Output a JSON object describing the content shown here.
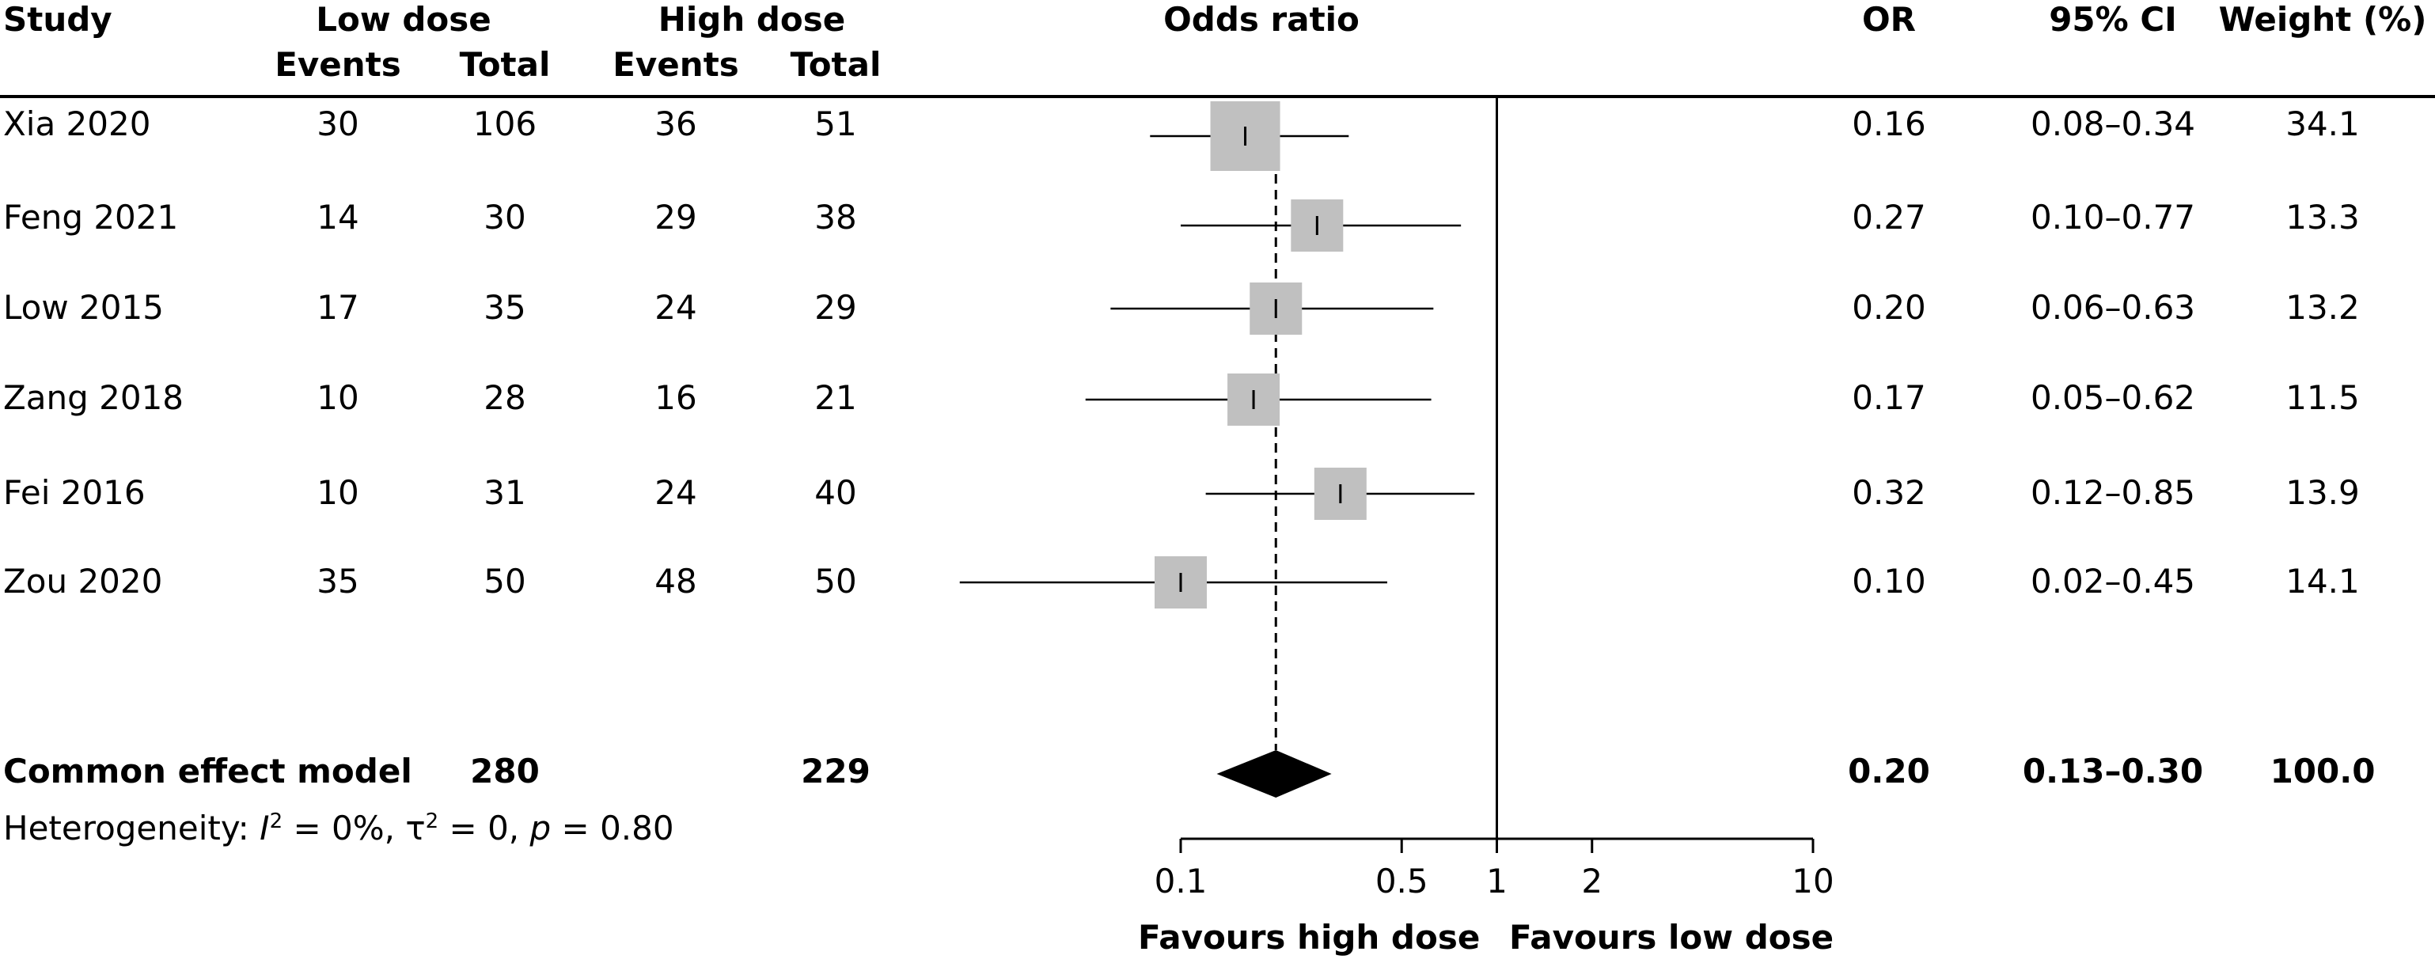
{
  "headers": {
    "study": "Study",
    "low_dose": "Low dose",
    "high_dose": "High dose",
    "events": "Events",
    "total": "Total",
    "odds_ratio": "Odds ratio",
    "or": "OR",
    "ci": "95% CI",
    "weight": "Weight (%)"
  },
  "rows": [
    {
      "study": "Xia 2020",
      "low_events": "30",
      "low_total": "106",
      "high_events": "36",
      "high_total": "51",
      "or": "0.16",
      "ci": "0.08–0.34",
      "weight": "34.1"
    },
    {
      "study": "Feng 2021",
      "low_events": "14",
      "low_total": "30",
      "high_events": "29",
      "high_total": "38",
      "or": "0.27",
      "ci": "0.10–0.77",
      "weight": "13.3"
    },
    {
      "study": "Low 2015",
      "low_events": "17",
      "low_total": "35",
      "high_events": "24",
      "high_total": "29",
      "or": "0.20",
      "ci": "0.06–0.63",
      "weight": "13.2"
    },
    {
      "study": "Zang 2018",
      "low_events": "10",
      "low_total": "28",
      "high_events": "16",
      "high_total": "21",
      "or": "0.17",
      "ci": "0.05–0.62",
      "weight": "11.5"
    },
    {
      "study": "Fei 2016",
      "low_events": "10",
      "low_total": "31",
      "high_events": "24",
      "high_total": "40",
      "or": "0.32",
      "ci": "0.12–0.85",
      "weight": "13.9"
    },
    {
      "study": "Zou 2020",
      "low_events": "35",
      "low_total": "50",
      "high_events": "48",
      "high_total": "50",
      "or": "0.10",
      "ci": "0.02–0.45",
      "weight": "14.1"
    }
  ],
  "summary": {
    "label": "Common effect model",
    "low_total": "280",
    "high_total": "229",
    "or": "0.20",
    "ci": "0.13–0.30",
    "weight": "100.0"
  },
  "heterogeneity": {
    "prefix": "Heterogeneity: ",
    "i_symbol": "I",
    "i_sup": "2",
    "i_value": " = 0%, τ",
    "tau_sup": "2",
    "tau_value": " = 0, ",
    "p_symbol": "p",
    "p_value": " = 0.80"
  },
  "axis": {
    "favours_left": "Favours high dose",
    "favours_right": "Favours low dose"
  },
  "chart_data": {
    "type": "forest",
    "scale": "log",
    "xlim": [
      0.1,
      10
    ],
    "ticks": [
      {
        "value": 0.1,
        "label": "0.1"
      },
      {
        "value": 0.5,
        "label": "0.5"
      },
      {
        "value": 1,
        "label": "1"
      },
      {
        "value": 2,
        "label": "2"
      },
      {
        "value": 10,
        "label": "10"
      }
    ],
    "reference_line": 1,
    "pooled_line": 0.2,
    "studies": [
      {
        "name": "Xia 2020",
        "or": 0.16,
        "lower": 0.08,
        "upper": 0.34,
        "weight": 34.1
      },
      {
        "name": "Feng 2021",
        "or": 0.27,
        "lower": 0.1,
        "upper": 0.77,
        "weight": 13.3
      },
      {
        "name": "Low 2015",
        "or": 0.2,
        "lower": 0.06,
        "upper": 0.63,
        "weight": 13.2
      },
      {
        "name": "Zang 2018",
        "or": 0.17,
        "lower": 0.05,
        "upper": 0.62,
        "weight": 11.5
      },
      {
        "name": "Fei 2016",
        "or": 0.32,
        "lower": 0.12,
        "upper": 0.85,
        "weight": 13.9
      },
      {
        "name": "Zou 2020",
        "or": 0.1,
        "lower": 0.02,
        "upper": 0.45,
        "weight": 14.1
      }
    ],
    "pooled": {
      "or": 0.2,
      "lower": 0.13,
      "upper": 0.3
    },
    "colors": {
      "box": "#c0c0c0",
      "diamond": "#000000",
      "line": "#000000"
    }
  }
}
